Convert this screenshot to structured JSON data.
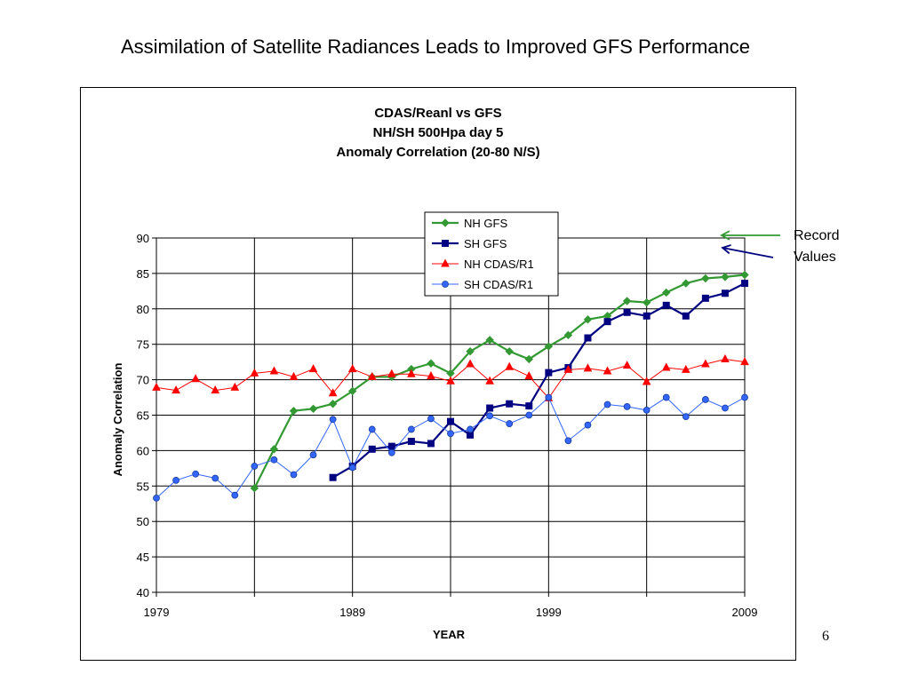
{
  "slide": {
    "title": "Assimilation of Satellite Radiances Leads to Improved GFS Performance",
    "page_number": "6",
    "annotation": {
      "line1": "Record",
      "line2": "Values"
    }
  },
  "chart_data": {
    "type": "line",
    "title_lines": [
      "CDAS/Reanl vs GFS",
      "NH/SH 500Hpa day 5",
      "Anomaly Correlation (20-80 N/S)"
    ],
    "xlabel": "YEAR",
    "ylabel": "Anomaly Correlation",
    "xlim": [
      1979,
      2009
    ],
    "ylim": [
      40,
      90
    ],
    "yticks": [
      40,
      45,
      50,
      55,
      60,
      65,
      70,
      75,
      80,
      85,
      90
    ],
    "xticks": [
      1979,
      1989,
      1999,
      2009
    ],
    "grid": "horizontal every 5, vertical every 5 years",
    "legend_position": "top-center",
    "series": [
      {
        "name": "NH GFS",
        "color": "#339933",
        "marker": "diamond",
        "x": [
          1984,
          1985,
          1986,
          1987,
          1988,
          1989,
          1990,
          1991,
          1992,
          1993,
          1994,
          1995,
          1996,
          1997,
          1998,
          1999,
          2000,
          2001,
          2002,
          2003,
          2004,
          2005,
          2006,
          2007,
          2008,
          2009
        ],
        "y": [
          54.7,
          60.2,
          65.6,
          65.9,
          66.6,
          68.4,
          70.4,
          70.4,
          71.5,
          72.3,
          70.9,
          74.0,
          75.6,
          74.0,
          72.9,
          74.7,
          76.3,
          78.5,
          79.0,
          81.1,
          80.9,
          82.3,
          83.6,
          84.3,
          84.5,
          84.8
        ]
      },
      {
        "name": "SH GFS",
        "color": "#000080",
        "marker": "square",
        "x": [
          1988,
          1989,
          1990,
          1991,
          1992,
          1993,
          1994,
          1995,
          1996,
          1997,
          1998,
          1999,
          2000,
          2001,
          2002,
          2003,
          2004,
          2005,
          2006,
          2007,
          2008,
          2009
        ],
        "y": [
          56.2,
          57.8,
          60.2,
          60.6,
          61.3,
          61.0,
          64.1,
          62.2,
          66.0,
          66.6,
          66.3,
          71.0,
          71.7,
          75.9,
          78.2,
          79.5,
          79.0,
          80.5,
          79.0,
          81.5,
          82.2,
          83.6
        ]
      },
      {
        "name": "NH CDAS/R1",
        "color": "#ff0000",
        "marker": "triangle",
        "x": [
          1979,
          1980,
          1981,
          1982,
          1983,
          1984,
          1985,
          1986,
          1987,
          1988,
          1989,
          1990,
          1991,
          1992,
          1993,
          1994,
          1995,
          1996,
          1997,
          1998,
          1999,
          2000,
          2001,
          2002,
          2003,
          2004,
          2005,
          2006,
          2007,
          2008,
          2009
        ],
        "y": [
          68.9,
          68.5,
          70.1,
          68.5,
          68.9,
          70.9,
          71.2,
          70.4,
          71.5,
          68.1,
          71.5,
          70.4,
          70.8,
          70.8,
          70.5,
          69.8,
          72.2,
          69.8,
          71.8,
          70.5,
          67.4,
          71.4,
          71.6,
          71.2,
          72.0,
          69.7,
          71.7,
          71.4,
          72.2,
          72.9,
          72.5
        ]
      },
      {
        "name": "SH CDAS/R1",
        "color": "#3366ff",
        "marker": "circle",
        "x": [
          1979,
          1980,
          1981,
          1982,
          1983,
          1984,
          1985,
          1986,
          1987,
          1988,
          1989,
          1990,
          1991,
          1992,
          1993,
          1994,
          1995,
          1996,
          1997,
          1998,
          1999,
          2000,
          2001,
          2002,
          2003,
          2004,
          2005,
          2006,
          2007,
          2008,
          2009
        ],
        "y": [
          53.3,
          55.8,
          56.7,
          56.1,
          53.7,
          57.8,
          58.7,
          56.6,
          59.4,
          64.4,
          57.6,
          63.0,
          59.7,
          63.0,
          64.5,
          62.4,
          63.0,
          64.9,
          63.8,
          65.0,
          67.5,
          61.4,
          63.6,
          66.5,
          66.2,
          65.7,
          67.5,
          64.8,
          67.2,
          66.0,
          67.5
        ]
      }
    ]
  }
}
